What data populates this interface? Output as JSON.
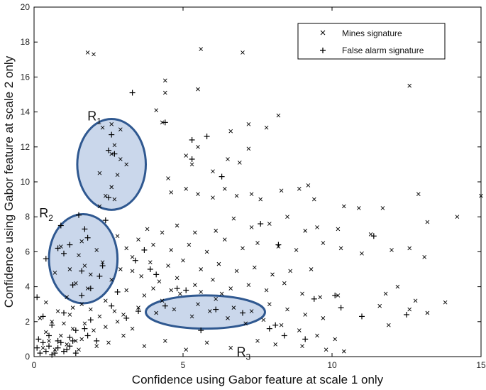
{
  "chart_data": {
    "type": "scatter",
    "xlabel": "Confidence using Gabor feature at scale 1 only",
    "ylabel": "Confidence using Gabor feature at scale 2 only",
    "xlim": [
      0,
      15
    ],
    "ylim": [
      0,
      20
    ],
    "xticks": [
      "0",
      "5",
      "10",
      "15"
    ],
    "yticks": [
      "0",
      "2",
      "4",
      "6",
      "8",
      "10",
      "12",
      "14",
      "16",
      "18",
      "20"
    ],
    "grid": false,
    "legend_position": "top-right",
    "series": [
      {
        "name": "Mines signature",
        "marker": "x",
        "points": [
          [
            1.8,
            17.4
          ],
          [
            2.0,
            17.3
          ],
          [
            5.6,
            17.6
          ],
          [
            7.0,
            17.4
          ],
          [
            4.4,
            15.8
          ],
          [
            4.4,
            15.1
          ],
          [
            5.5,
            15.3
          ],
          [
            12.6,
            15.5
          ],
          [
            4.1,
            14.1
          ],
          [
            4.3,
            13.4
          ],
          [
            6.6,
            12.9
          ],
          [
            7.2,
            13.3
          ],
          [
            7.8,
            13.1
          ],
          [
            8.2,
            13.8
          ],
          [
            5.5,
            12.0
          ],
          [
            7.2,
            11.9
          ],
          [
            6.5,
            11.3
          ],
          [
            6.9,
            11.1
          ],
          [
            5.1,
            11.5
          ],
          [
            5.3,
            11.0
          ],
          [
            6.0,
            10.6
          ],
          [
            2.3,
            13.1
          ],
          [
            2.6,
            13.3
          ],
          [
            2.9,
            13.0
          ],
          [
            2.7,
            12.1
          ],
          [
            2.6,
            11.6
          ],
          [
            2.9,
            11.3
          ],
          [
            3.1,
            11.0
          ],
          [
            2.2,
            10.5
          ],
          [
            2.8,
            10.4
          ],
          [
            2.6,
            9.7
          ],
          [
            2.4,
            9.2
          ],
          [
            2.7,
            9.0
          ],
          [
            2.2,
            8.6
          ],
          [
            4.5,
            10.2
          ],
          [
            4.6,
            9.4
          ],
          [
            5.1,
            9.6
          ],
          [
            5.5,
            9.3
          ],
          [
            6.0,
            9.1
          ],
          [
            6.4,
            9.6
          ],
          [
            6.8,
            9.2
          ],
          [
            7.3,
            9.3
          ],
          [
            7.6,
            9.0
          ],
          [
            8.3,
            9.5
          ],
          [
            8.9,
            9.6
          ],
          [
            9.2,
            9.8
          ],
          [
            9.4,
            9.0
          ],
          [
            10.4,
            8.6
          ],
          [
            10.9,
            8.5
          ],
          [
            11.7,
            8.5
          ],
          [
            12.9,
            9.3
          ],
          [
            14.2,
            8.0
          ],
          [
            15.0,
            9.2
          ],
          [
            13.2,
            7.7
          ],
          [
            11.3,
            7.0
          ],
          [
            10.2,
            7.3
          ],
          [
            9.5,
            7.4
          ],
          [
            9.1,
            7.2
          ],
          [
            8.5,
            8.0
          ],
          [
            7.9,
            7.6
          ],
          [
            7.3,
            7.4
          ],
          [
            6.7,
            7.9
          ],
          [
            6.1,
            7.2
          ],
          [
            5.4,
            7.1
          ],
          [
            4.8,
            7.5
          ],
          [
            4.3,
            7.1
          ],
          [
            3.8,
            7.3
          ],
          [
            3.5,
            6.7
          ],
          [
            4.0,
            6.4
          ],
          [
            4.6,
            6.1
          ],
          [
            5.2,
            6.4
          ],
          [
            5.8,
            6.0
          ],
          [
            6.4,
            6.7
          ],
          [
            7.0,
            6.2
          ],
          [
            7.5,
            6.5
          ],
          [
            8.2,
            6.3
          ],
          [
            8.8,
            6.1
          ],
          [
            9.7,
            6.5
          ],
          [
            10.3,
            6.2
          ],
          [
            11.0,
            5.9
          ],
          [
            12.0,
            6.1
          ],
          [
            12.6,
            6.2
          ],
          [
            13.1,
            5.7
          ],
          [
            3.3,
            5.7
          ],
          [
            3.9,
            5.4
          ],
          [
            4.5,
            5.2
          ],
          [
            5.0,
            5.5
          ],
          [
            5.6,
            5.0
          ],
          [
            6.2,
            5.3
          ],
          [
            6.8,
            4.9
          ],
          [
            7.4,
            5.1
          ],
          [
            8.0,
            4.7
          ],
          [
            8.6,
            4.9
          ],
          [
            9.3,
            5.0
          ],
          [
            3.6,
            4.6
          ],
          [
            4.2,
            4.3
          ],
          [
            4.8,
            4.5
          ],
          [
            5.4,
            4.1
          ],
          [
            6.0,
            4.4
          ],
          [
            6.6,
            3.9
          ],
          [
            7.2,
            4.1
          ],
          [
            7.8,
            3.8
          ],
          [
            8.4,
            4.2
          ],
          [
            9.0,
            3.6
          ],
          [
            9.6,
            3.4
          ],
          [
            10.2,
            3.5
          ],
          [
            11.8,
            3.6
          ],
          [
            12.8,
            3.2
          ],
          [
            13.8,
            3.1
          ],
          [
            12.2,
            4.0
          ],
          [
            12.6,
            2.7
          ],
          [
            11.6,
            2.9
          ],
          [
            11.9,
            1.8
          ],
          [
            13.2,
            2.5
          ],
          [
            3.1,
            3.8
          ],
          [
            3.7,
            3.5
          ],
          [
            4.3,
            3.2
          ],
          [
            4.9,
            3.6
          ],
          [
            5.5,
            3.0
          ],
          [
            6.1,
            3.3
          ],
          [
            6.7,
            2.8
          ],
          [
            7.3,
            2.6
          ],
          [
            7.9,
            3.0
          ],
          [
            8.5,
            2.7
          ],
          [
            9.1,
            2.4
          ],
          [
            9.7,
            2.2
          ],
          [
            3.5,
            2.8
          ],
          [
            4.1,
            2.5
          ],
          [
            4.7,
            2.7
          ],
          [
            5.3,
            2.3
          ],
          [
            5.9,
            2.6
          ],
          [
            6.5,
            2.2
          ],
          [
            7.1,
            1.9
          ],
          [
            7.7,
            2.1
          ],
          [
            8.3,
            1.8
          ],
          [
            8.9,
            1.5
          ],
          [
            9.5,
            1.2
          ],
          [
            10.1,
            1.0
          ],
          [
            9.0,
            0.6
          ],
          [
            9.8,
            0.4
          ],
          [
            10.4,
            0.3
          ],
          [
            8.1,
            0.7
          ],
          [
            7.5,
            0.9
          ],
          [
            6.6,
            0.5
          ],
          [
            5.8,
            0.8
          ],
          [
            5.1,
            0.4
          ],
          [
            4.4,
            0.9
          ],
          [
            3.7,
            0.6
          ],
          [
            3.0,
            1.2
          ],
          [
            2.5,
            0.8
          ],
          [
            2.0,
            1.5
          ],
          [
            1.6,
            1.0
          ],
          [
            2.8,
            2.0
          ],
          [
            3.3,
            1.6
          ],
          [
            2.2,
            2.3
          ],
          [
            1.5,
            5.8
          ],
          [
            1.7,
            5.2
          ],
          [
            1.9,
            4.7
          ],
          [
            1.4,
            4.2
          ],
          [
            1.8,
            3.9
          ],
          [
            1.2,
            5.0
          ],
          [
            1.6,
            6.6
          ],
          [
            2.1,
            6.1
          ],
          [
            2.3,
            5.4
          ],
          [
            1.1,
            3.4
          ],
          [
            0.9,
            6.3
          ],
          [
            0.7,
            4.8
          ],
          [
            2.6,
            4.4
          ],
          [
            2.9,
            5.0
          ],
          [
            3.1,
            6.2
          ],
          [
            2.8,
            6.9
          ],
          [
            3.3,
            4.9
          ],
          [
            4.0,
            3.9
          ],
          [
            4.6,
            3.8
          ],
          [
            5.6,
            3.7
          ],
          [
            6.3,
            3.6
          ],
          [
            0.3,
            0.5
          ],
          [
            0.5,
            0.9
          ],
          [
            0.7,
            0.4
          ],
          [
            0.9,
            1.2
          ],
          [
            1.1,
            0.7
          ],
          [
            1.3,
            1.6
          ],
          [
            0.4,
            1.4
          ],
          [
            0.6,
            2.0
          ],
          [
            0.8,
            2.6
          ],
          [
            1.0,
            1.9
          ],
          [
            1.2,
            2.4
          ],
          [
            1.4,
            0.9
          ],
          [
            1.7,
            1.9
          ],
          [
            1.9,
            2.7
          ],
          [
            2.1,
            0.6
          ],
          [
            2.4,
            1.7
          ],
          [
            0.2,
            2.2
          ],
          [
            0.4,
            3.1
          ],
          [
            1.6,
            3.0
          ],
          [
            2.4,
            3.2
          ],
          [
            2.7,
            2.6
          ],
          [
            3.0,
            2.4
          ],
          [
            1.3,
            2.8
          ],
          [
            1.5,
            0.4
          ]
        ]
      },
      {
        "name": "False alarm signature",
        "marker": "+",
        "points": [
          [
            3.3,
            15.1
          ],
          [
            4.4,
            13.4
          ],
          [
            5.3,
            12.4
          ],
          [
            5.8,
            12.6
          ],
          [
            5.3,
            11.3
          ],
          [
            2.5,
            11.8
          ],
          [
            2.7,
            11.6
          ],
          [
            2.6,
            12.7
          ],
          [
            2.5,
            9.1
          ],
          [
            6.3,
            10.3
          ],
          [
            0.4,
            5.6
          ],
          [
            0.8,
            6.2
          ],
          [
            1.0,
            5.9
          ],
          [
            1.2,
            6.4
          ],
          [
            0.9,
            7.5
          ],
          [
            1.5,
            8.1
          ],
          [
            1.7,
            7.3
          ],
          [
            1.3,
            4.1
          ],
          [
            1.6,
            3.5
          ],
          [
            1.9,
            3.9
          ],
          [
            1.6,
            4.9
          ],
          [
            2.2,
            4.6
          ],
          [
            1.8,
            6.8
          ],
          [
            2.3,
            5.2
          ],
          [
            2.8,
            3.7
          ],
          [
            3.5,
            2.6
          ],
          [
            3.4,
            5.5
          ],
          [
            4.4,
            2.9
          ],
          [
            4.8,
            3.9
          ],
          [
            5.1,
            3.8
          ],
          [
            6.1,
            2.7
          ],
          [
            5.6,
            1.5
          ],
          [
            7.0,
            2.5
          ],
          [
            7.6,
            7.6
          ],
          [
            8.2,
            6.4
          ],
          [
            8.1,
            1.8
          ],
          [
            9.1,
            1.0
          ],
          [
            9.4,
            3.3
          ],
          [
            10.1,
            3.5
          ],
          [
            10.3,
            2.8
          ],
          [
            11.0,
            2.3
          ],
          [
            11.4,
            6.9
          ],
          [
            12.5,
            2.4
          ],
          [
            8.4,
            1.2
          ],
          [
            7.9,
            1.6
          ],
          [
            0.1,
            3.4
          ],
          [
            0.3,
            2.3
          ],
          [
            0.6,
            1.8
          ],
          [
            1.0,
            2.5
          ],
          [
            1.4,
            1.5
          ],
          [
            0.5,
            1.2
          ],
          [
            0.8,
            0.9
          ],
          [
            1.2,
            1.1
          ],
          [
            1.8,
            1.2
          ],
          [
            2.1,
            0.9
          ],
          [
            0.2,
            0.2
          ],
          [
            0.4,
            0.3
          ],
          [
            0.6,
            0.1
          ],
          [
            0.8,
            0.5
          ],
          [
            1.0,
            0.3
          ],
          [
            1.2,
            0.6
          ],
          [
            1.4,
            0.2
          ],
          [
            0.3,
            0.8
          ],
          [
            0.5,
            0.6
          ],
          [
            0.7,
            0.2
          ],
          [
            0.9,
            0.8
          ],
          [
            1.1,
            0.4
          ],
          [
            1.3,
            0.9
          ],
          [
            0.1,
            0.5
          ],
          [
            0.15,
            1.0
          ],
          [
            2.4,
            7.8
          ],
          [
            3.7,
            6.1
          ],
          [
            3.9,
            5.0
          ],
          [
            4.1,
            4.7
          ],
          [
            3.1,
            2.2
          ],
          [
            2.6,
            2.9
          ],
          [
            1.9,
            2.1
          ],
          [
            1.7,
            1.6
          ]
        ]
      }
    ],
    "regions": [
      {
        "label": "R",
        "sub": "1",
        "cx": 2.6,
        "cy": 11.0,
        "rx": 1.15,
        "ry": 2.6
      },
      {
        "label": "R",
        "sub": "2",
        "cx": 1.65,
        "cy": 5.6,
        "rx": 1.15,
        "ry": 2.55
      },
      {
        "label": "R",
        "sub": "3",
        "cx": 5.75,
        "cy": 2.55,
        "rx": 2.0,
        "ry": 0.95
      }
    ]
  }
}
